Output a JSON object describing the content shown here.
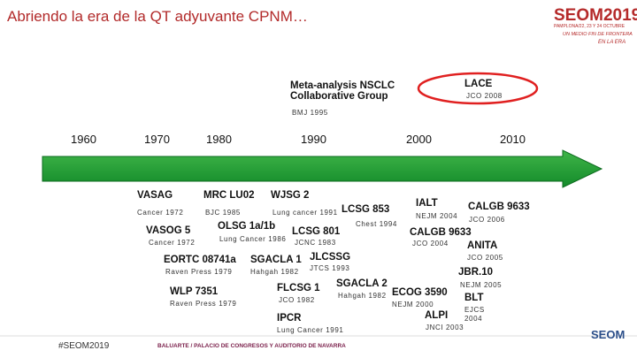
{
  "header": {
    "title": "Abriendo la era de la QT adyuvante CPNM…"
  },
  "logo": {
    "brand": "SEOM2019",
    "dates": "PAMPLONA/22, 23 Y 24 OCTUBRE",
    "tagline1": "UN MEDIO FIN DE FRONTERA",
    "tagline2": "EN LA ERA"
  },
  "timeline": {
    "years": [
      "1960",
      "1970",
      "1980",
      "1990",
      "2000",
      "2010"
    ]
  },
  "trials": [
    "Meta-analysis NSCLC Collaborative Group",
    "LACE",
    "VASAG",
    "MRC LU02",
    "WJSG 2",
    "LCSG 853",
    "IALT",
    "CALGB 9633",
    "VASOG 5",
    "OLSG 1a/1b",
    "LCSG 801",
    "CALGB 9633",
    "ANITA",
    "EORTC 08741a",
    "SGACLA 1",
    "JLCSSG",
    "JBR.10",
    "WLP 7351",
    "FLCSG 1",
    "SGACLA 2",
    "ECOG 3590",
    "BLT",
    "ALPI",
    "IPCR"
  ],
  "citations": [
    "BMJ 1995",
    "JCO 2008",
    "Cancer 1972",
    "BJC 1985",
    "Lung cancer 1991",
    "Chest 1994",
    "NEJM 2004",
    "JCO 2006",
    "Cancer 1972",
    "Lung Cancer 1986",
    "JCNC 1983",
    "JCO 2004",
    "JCO 2005",
    "Raven Press 1979",
    "Hahgah 1982",
    "JTCS 1993",
    "NEJM 2005",
    "Raven Press 1979",
    "JCO 1982",
    "Hahgah 1982",
    "NEJM 2000",
    "EJCS 2004",
    "JNCI 2003",
    "Lung Cancer 1991"
  ],
  "footer": {
    "hashtag": "#SEOM2019",
    "venue": "BALUARTE / PALACIO DE CONGRESOS Y AUDITORIO DE NAVARRA",
    "corner_logo": "SEOM"
  }
}
